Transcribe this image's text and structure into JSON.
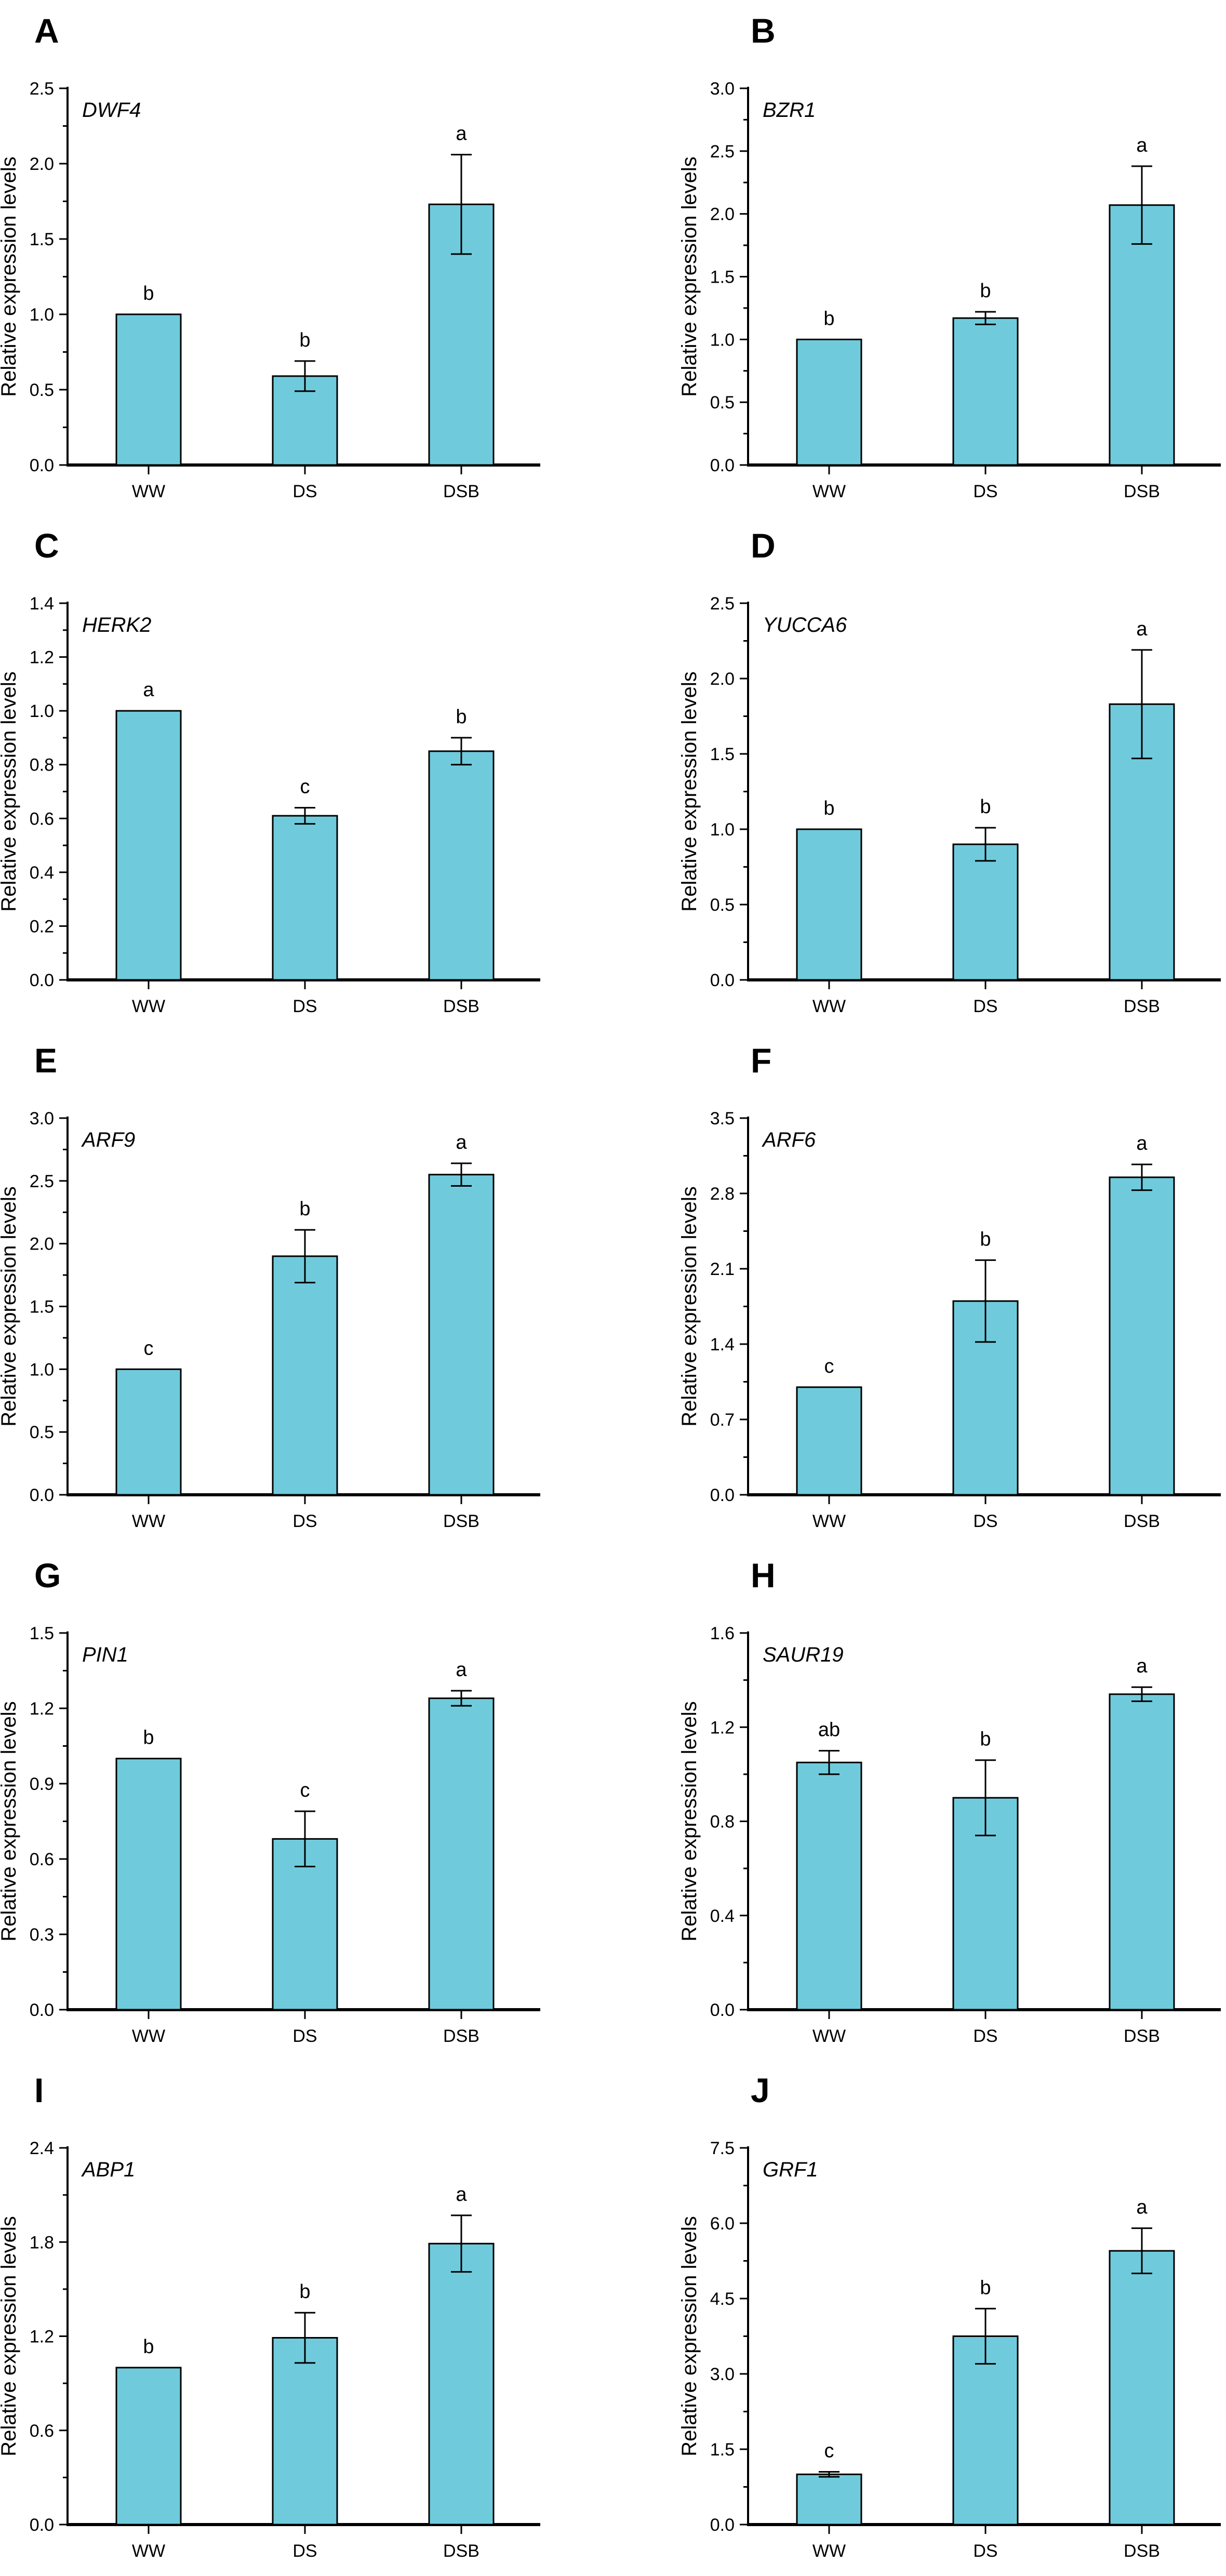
{
  "figure": {
    "panel_letters": [
      "A",
      "B",
      "C",
      "D",
      "E",
      "F",
      "G",
      "H",
      "I",
      "J"
    ],
    "conditions": [
      "WW",
      "DS",
      "DSB"
    ],
    "ylabel": "Relative expression levels"
  },
  "colors": {
    "bar_fill": "#6FCBDC",
    "bar_stroke": "#000000",
    "axis": "#000000",
    "text": "#000000"
  },
  "chart_data": [
    {
      "type": "bar",
      "panel": "A",
      "title": "DWF4",
      "categories": [
        "WW",
        "DS",
        "DSB"
      ],
      "values": [
        1.0,
        0.59,
        1.73
      ],
      "errors": [
        0,
        0.1,
        0.33
      ],
      "sig_letters": [
        "b",
        "b",
        "a"
      ],
      "xlabel": "",
      "ylabel": "Relative expression levels",
      "ylim": [
        0,
        2.5
      ],
      "ytick_step": 0.5,
      "grid": false,
      "legend": false
    },
    {
      "type": "bar",
      "panel": "B",
      "title": "BZR1",
      "categories": [
        "WW",
        "DS",
        "DSB"
      ],
      "values": [
        1.0,
        1.17,
        2.07
      ],
      "errors": [
        0,
        0.05,
        0.31
      ],
      "sig_letters": [
        "b",
        "b",
        "a"
      ],
      "xlabel": "",
      "ylabel": "Relative expression levels",
      "ylim": [
        0,
        3.0
      ],
      "ytick_step": 0.5,
      "grid": false,
      "legend": false
    },
    {
      "type": "bar",
      "panel": "C",
      "title": "HERK2",
      "categories": [
        "WW",
        "DS",
        "DSB"
      ],
      "values": [
        1.0,
        0.61,
        0.85
      ],
      "errors": [
        0,
        0.03,
        0.05
      ],
      "sig_letters": [
        "a",
        "c",
        "b"
      ],
      "xlabel": "",
      "ylabel": "Relative expression levels",
      "ylim": [
        0,
        1.4
      ],
      "ytick_step": 0.2,
      "grid": false,
      "legend": false
    },
    {
      "type": "bar",
      "panel": "D",
      "title": "YUCCA6",
      "categories": [
        "WW",
        "DS",
        "DSB"
      ],
      "values": [
        1.0,
        0.9,
        1.83
      ],
      "errors": [
        0,
        0.11,
        0.36
      ],
      "sig_letters": [
        "b",
        "b",
        "a"
      ],
      "xlabel": "",
      "ylabel": "Relative expression levels",
      "ylim": [
        0,
        2.5
      ],
      "ytick_step": 0.5,
      "grid": false,
      "legend": false
    },
    {
      "type": "bar",
      "panel": "E",
      "title": "ARF9",
      "categories": [
        "WW",
        "DS",
        "DSB"
      ],
      "values": [
        1.0,
        1.9,
        2.55
      ],
      "errors": [
        0,
        0.21,
        0.09
      ],
      "sig_letters": [
        "c",
        "b",
        "a"
      ],
      "xlabel": "",
      "ylabel": "Relative expression levels",
      "ylim": [
        0,
        3.0
      ],
      "ytick_step": 0.5,
      "grid": false,
      "legend": false
    },
    {
      "type": "bar",
      "panel": "F",
      "title": "ARF6",
      "categories": [
        "WW",
        "DS",
        "DSB"
      ],
      "values": [
        1.0,
        1.8,
        2.95
      ],
      "errors": [
        0,
        0.38,
        0.12
      ],
      "sig_letters": [
        "c",
        "b",
        "a"
      ],
      "xlabel": "",
      "ylabel": "Relative expression levels",
      "ylim": [
        0,
        3.5
      ],
      "ytick_step": 0.7,
      "grid": false,
      "legend": false
    },
    {
      "type": "bar",
      "panel": "G",
      "title": "PIN1",
      "categories": [
        "WW",
        "DS",
        "DSB"
      ],
      "values": [
        1.0,
        0.68,
        1.24
      ],
      "errors": [
        0,
        0.11,
        0.03
      ],
      "sig_letters": [
        "b",
        "c",
        "a"
      ],
      "xlabel": "",
      "ylabel": "Relative expression levels",
      "ylim": [
        0,
        1.5
      ],
      "ytick_step": 0.3,
      "grid": false,
      "legend": false
    },
    {
      "type": "bar",
      "panel": "H",
      "title": "SAUR19",
      "categories": [
        "WW",
        "DS",
        "DSB"
      ],
      "values": [
        1.05,
        0.9,
        1.34
      ],
      "errors": [
        0.05,
        0.16,
        0.03
      ],
      "sig_letters": [
        "ab",
        "b",
        "a"
      ],
      "xlabel": "",
      "ylabel": "Relative expression levels",
      "ylim": [
        0,
        1.6
      ],
      "ytick_step": 0.4,
      "grid": false,
      "legend": false
    },
    {
      "type": "bar",
      "panel": "I",
      "title": "ABP1",
      "categories": [
        "WW",
        "DS",
        "DSB"
      ],
      "values": [
        1.0,
        1.19,
        1.79
      ],
      "errors": [
        0,
        0.16,
        0.18
      ],
      "sig_letters": [
        "b",
        "b",
        "a"
      ],
      "xlabel": "",
      "ylabel": "Relative expression levels",
      "ylim": [
        0,
        2.4
      ],
      "ytick_step": 0.6,
      "grid": false,
      "legend": false
    },
    {
      "type": "bar",
      "panel": "J",
      "title": "GRF1",
      "categories": [
        "WW",
        "DS",
        "DSB"
      ],
      "values": [
        1.0,
        3.75,
        5.45
      ],
      "errors": [
        0.05,
        0.55,
        0.45
      ],
      "sig_letters": [
        "c",
        "b",
        "a"
      ],
      "xlabel": "",
      "ylabel": "Relative expression levels",
      "ylim": [
        0,
        7.5
      ],
      "ytick_step": 1.5,
      "grid": false,
      "legend": false
    }
  ]
}
